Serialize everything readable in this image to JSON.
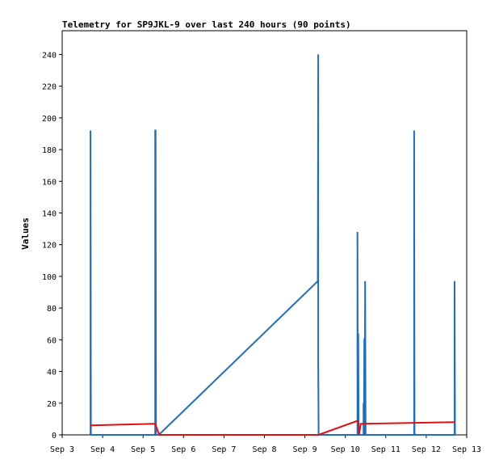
{
  "chart_data": {
    "type": "line",
    "title": "Telemetry for SP9JKL-9 over last 240 hours (90 points)",
    "xlabel": "",
    "ylabel": "Values",
    "x_ticks": [
      "Sep 3",
      "Sep 4",
      "Sep 5",
      "Sep 6",
      "Sep 7",
      "Sep 8",
      "Sep 9",
      "Sep 10",
      "Sep 11",
      "Sep 12",
      "Sep 13"
    ],
    "y_ticks": [
      0,
      20,
      40,
      60,
      80,
      100,
      120,
      140,
      160,
      180,
      200,
      220,
      240
    ],
    "ylim": [
      0,
      255
    ],
    "xlim": [
      0,
      10
    ],
    "grid": false,
    "series": [
      {
        "color": "#1f6ec1",
        "points": [
          [
            0.7,
            0
          ],
          [
            0.7,
            192
          ],
          [
            0.71,
            0
          ],
          [
            2.3,
            0
          ],
          [
            2.3,
            192
          ],
          [
            2.31,
            192
          ],
          [
            2.32,
            0
          ],
          [
            2.39,
            0
          ],
          [
            6.32,
            97
          ],
          [
            6.33,
            240
          ],
          [
            6.33,
            48
          ],
          [
            6.34,
            0
          ],
          [
            7.3,
            0
          ],
          [
            7.3,
            128
          ],
          [
            7.31,
            0
          ],
          [
            7.32,
            64
          ],
          [
            7.33,
            0
          ],
          [
            7.45,
            0
          ],
          [
            7.45,
            20
          ],
          [
            7.46,
            0
          ],
          [
            7.47,
            61
          ],
          [
            7.48,
            0
          ],
          [
            7.49,
            97
          ],
          [
            7.5,
            0
          ],
          [
            8.7,
            0
          ],
          [
            8.7,
            192
          ],
          [
            8.71,
            0
          ],
          [
            9.7,
            0
          ],
          [
            9.7,
            97
          ],
          [
            9.71,
            0
          ]
        ]
      },
      {
        "color": "#e01010",
        "points": [
          [
            0.7,
            6
          ],
          [
            2.3,
            7
          ],
          [
            2.4,
            0
          ],
          [
            6.34,
            0
          ],
          [
            7.31,
            9
          ],
          [
            7.34,
            0
          ],
          [
            7.38,
            7
          ],
          [
            9.7,
            8
          ]
        ]
      },
      {
        "color": "#000000",
        "points": [
          [
            0.7,
            0
          ],
          [
            9.7,
            0
          ]
        ]
      }
    ]
  }
}
